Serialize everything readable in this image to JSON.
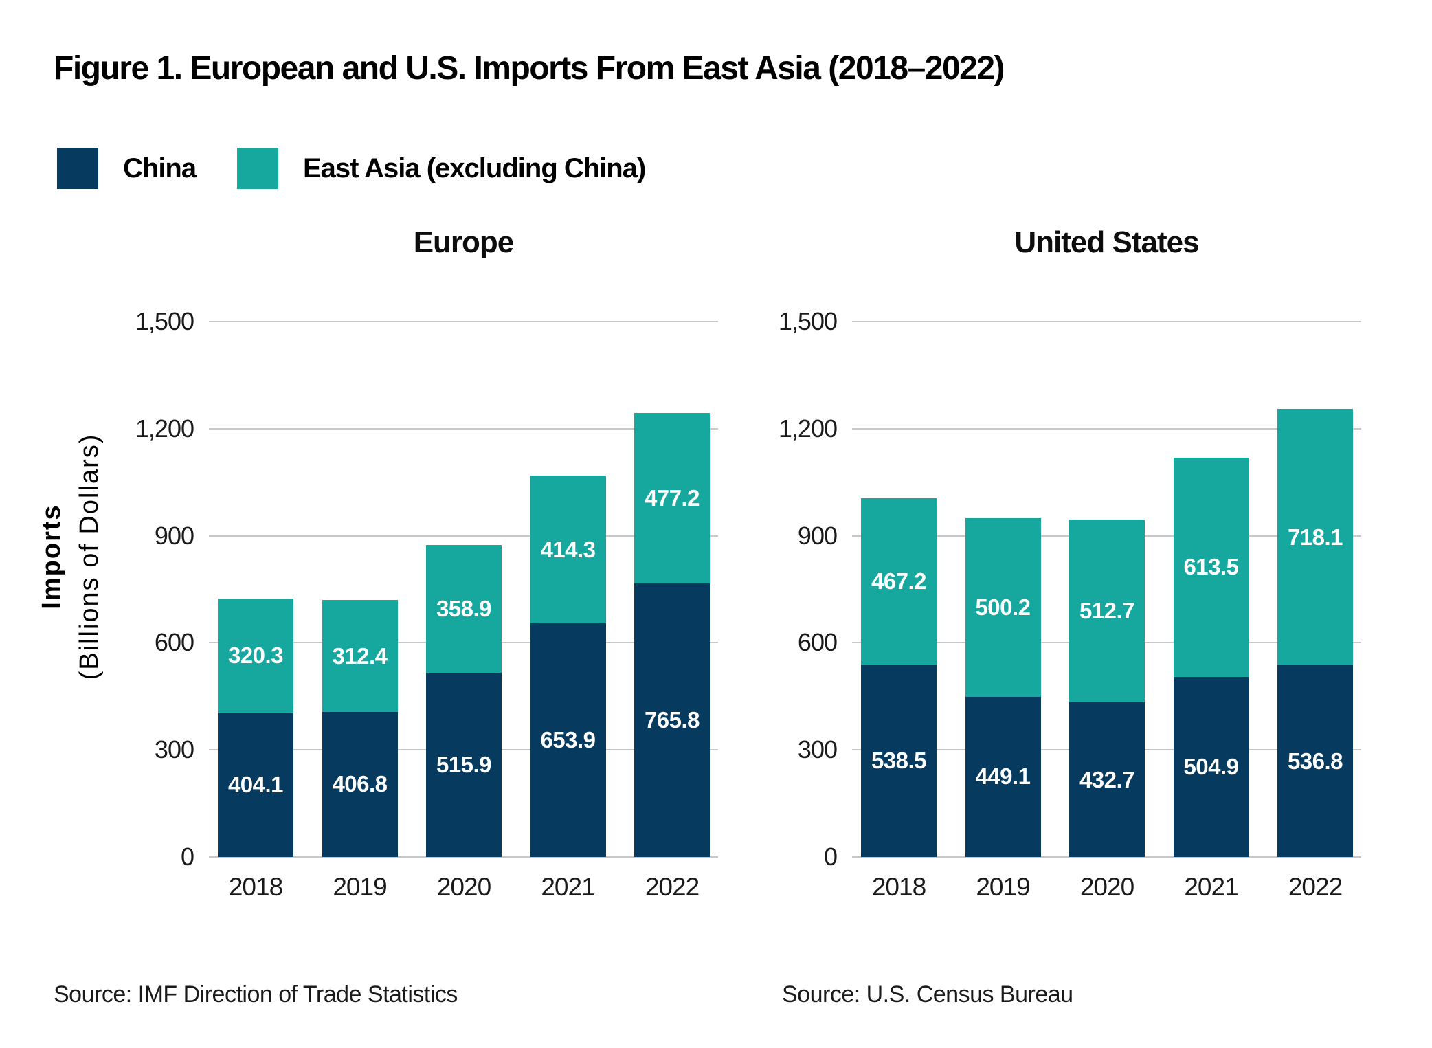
{
  "title": "Figure 1. European and U.S. Imports From East Asia (2018–2022)",
  "legend": [
    {
      "label": "China",
      "color": "#063A5F"
    },
    {
      "label": "East Asia (excluding China)",
      "color": "#16A89E"
    }
  ],
  "y_axis_title": {
    "line1": "Imports",
    "line2": "(Billions of Dollars)"
  },
  "colors": {
    "china": "#063A5F",
    "east_asia": "#16A89E",
    "gridline": "#c8c8c8"
  },
  "chart_data": [
    {
      "type": "bar",
      "stacked": true,
      "title": "Europe",
      "categories": [
        "2018",
        "2019",
        "2020",
        "2021",
        "2022"
      ],
      "series": [
        {
          "name": "China",
          "color": "#063A5F",
          "values": [
            404.1,
            406.8,
            515.9,
            653.9,
            765.8
          ]
        },
        {
          "name": "East Asia (excluding China)",
          "color": "#16A89E",
          "values": [
            320.3,
            312.4,
            358.9,
            414.3,
            477.2
          ]
        }
      ],
      "ylim": [
        0,
        1500
      ],
      "yticks": [
        {
          "value": 1500,
          "label": "1,500"
        },
        {
          "value": 1200,
          "label": "1,200"
        },
        {
          "value": 900,
          "label": "900"
        },
        {
          "value": 600,
          "label": "600"
        },
        {
          "value": 300,
          "label": "300"
        },
        {
          "value": 0,
          "label": "0"
        }
      ],
      "grid": true,
      "legend_position": "top-left",
      "source": "Source: IMF Direction of Trade Statistics"
    },
    {
      "type": "bar",
      "stacked": true,
      "title": "United States",
      "categories": [
        "2018",
        "2019",
        "2020",
        "2021",
        "2022"
      ],
      "series": [
        {
          "name": "China",
          "color": "#063A5F",
          "values": [
            538.5,
            449.1,
            432.7,
            504.9,
            536.8
          ]
        },
        {
          "name": "East Asia (excluding China)",
          "color": "#16A89E",
          "values": [
            467.2,
            500.2,
            512.7,
            613.5,
            718.1
          ]
        }
      ],
      "ylim": [
        0,
        1500
      ],
      "yticks": [
        {
          "value": 1500,
          "label": "1,500"
        },
        {
          "value": 1200,
          "label": "1,200"
        },
        {
          "value": 900,
          "label": "900"
        },
        {
          "value": 600,
          "label": "600"
        },
        {
          "value": 300,
          "label": "300"
        },
        {
          "value": 0,
          "label": "0"
        }
      ],
      "grid": true,
      "legend_position": "top-left",
      "source": "Source: U.S. Census Bureau"
    }
  ]
}
